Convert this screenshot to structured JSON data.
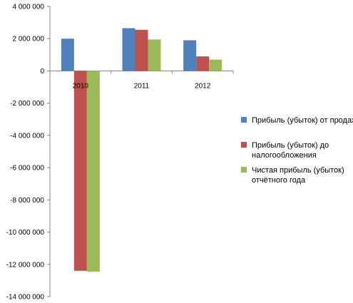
{
  "chart_data": {
    "type": "bar",
    "title": "",
    "xlabel": "",
    "ylabel": "",
    "categories": [
      "2010",
      "2011",
      "2012"
    ],
    "ylim": [
      -14000000,
      4000000
    ],
    "yticks": [
      4000000,
      2000000,
      0,
      -2000000,
      -4000000,
      -6000000,
      -8000000,
      -10000000,
      -12000000,
      -14000000
    ],
    "ytick_labels": [
      "4 000 000",
      "2 000 000",
      "0",
      "-2 000 000",
      "-4 000 000",
      "-6 000 000",
      "-8 000 000",
      "-10 000 000",
      "-12 000 000",
      "-14 000 000"
    ],
    "grid": false,
    "legend_position": "right",
    "series": [
      {
        "name": "Прибыль (убыток) от продаж",
        "legend_lines": [
          "Прибыль (убыток) от продаж"
        ],
        "color": "#4F81BD",
        "values": [
          2000000,
          2650000,
          1900000
        ]
      },
      {
        "name": "Прибыль (убыток) до налогообложения",
        "legend_lines": [
          "Прибыль (убыток) до",
          "налогообложения"
        ],
        "color": "#C0504D",
        "values": [
          -12400000,
          2550000,
          900000
        ]
      },
      {
        "name": "Чистая прибыль (убыток) отчётного года",
        "legend_lines": [
          "Чистая прибыль (убыток)",
          "отчётного года"
        ],
        "color": "#9BBB59",
        "values": [
          -12450000,
          1950000,
          700000
        ]
      }
    ]
  }
}
